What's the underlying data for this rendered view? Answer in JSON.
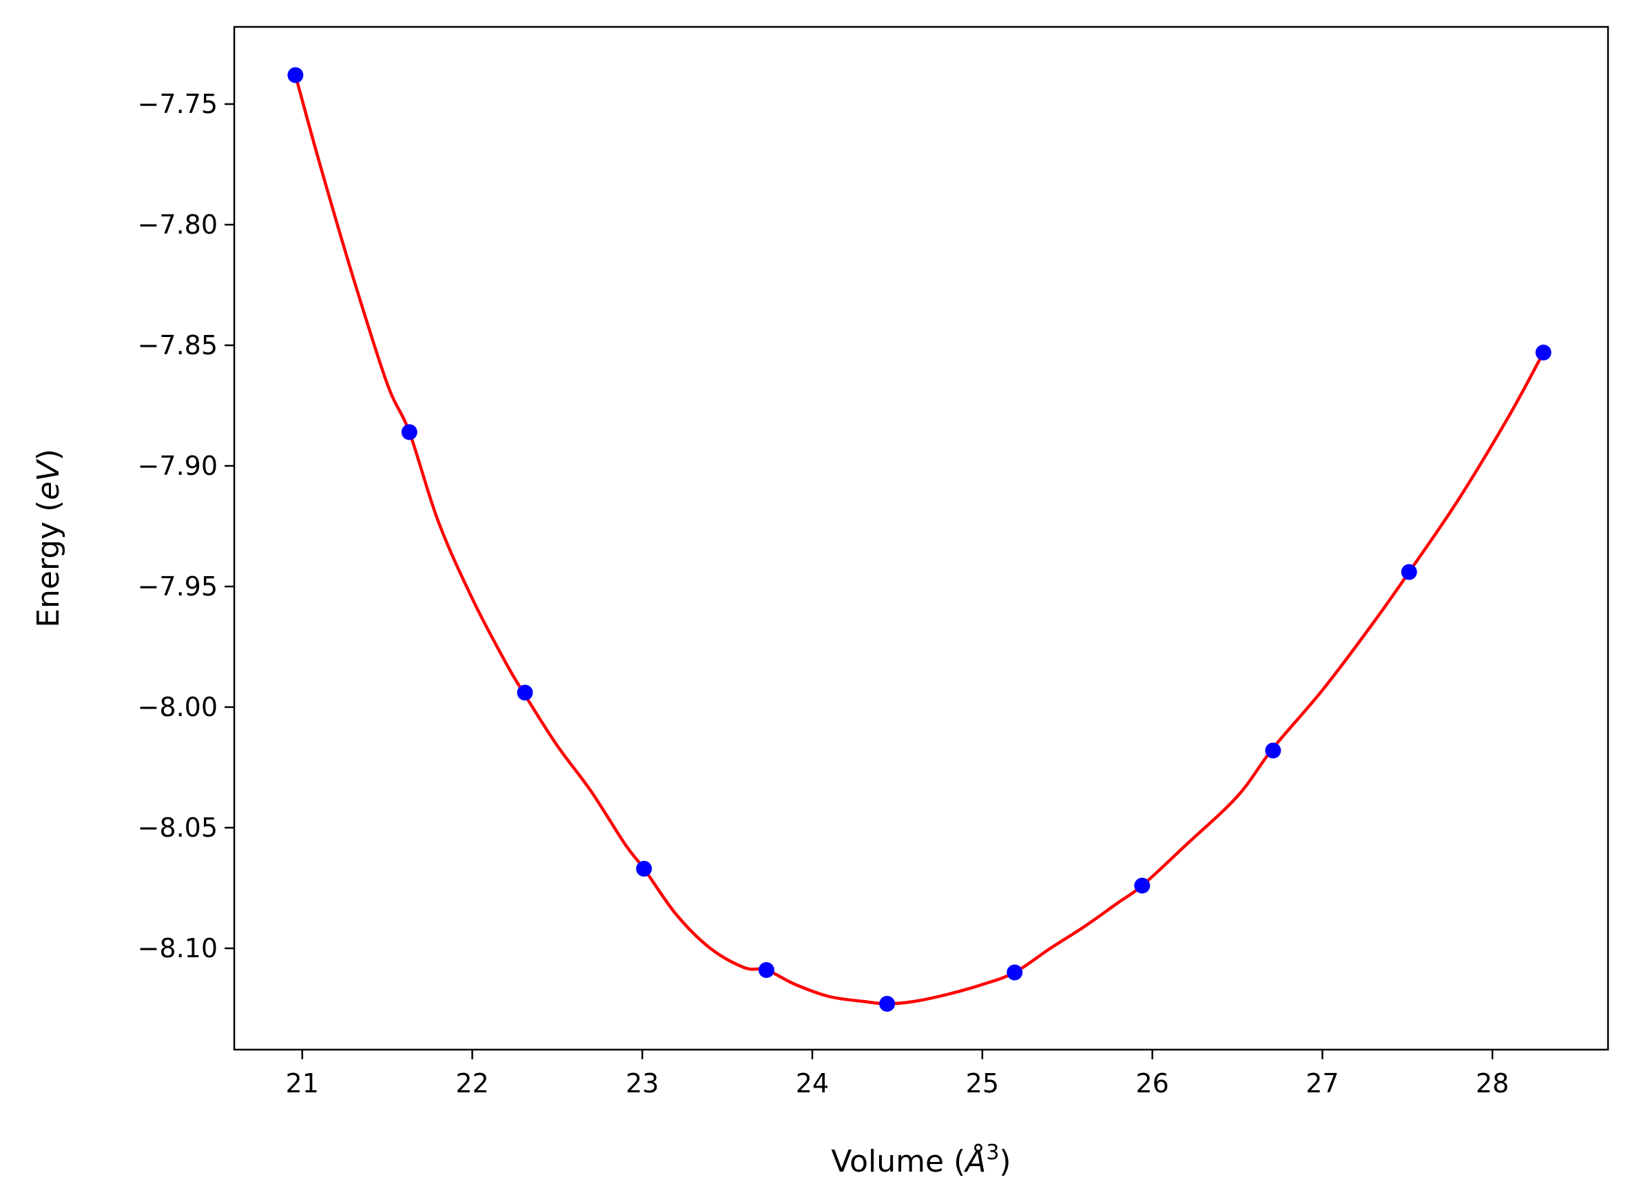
{
  "chart_data": {
    "type": "line",
    "title": "",
    "xlabel": "Volume (Å³)",
    "xlabel_parts": {
      "before": "Volume (",
      "symbol": "Å",
      "superscript": "3",
      "after": ")"
    },
    "ylabel": "Energy (eV)",
    "ylabel_parts": {
      "before": "Energy (",
      "italic": "eV",
      "after": ")"
    },
    "xlim": [
      20.6,
      28.68
    ],
    "ylim": [
      -8.142,
      -7.718
    ],
    "xticks": [
      21,
      22,
      23,
      24,
      25,
      26,
      27,
      28
    ],
    "yticks": [
      -7.75,
      -7.8,
      -7.85,
      -7.9,
      -7.95,
      -8.0,
      -8.05,
      -8.1
    ],
    "ytick_labels": [
      "−7.75",
      "−7.80",
      "−7.85",
      "−7.90",
      "−7.95",
      "−8.00",
      "−8.05",
      "−8.10"
    ],
    "grid": false,
    "series": [
      {
        "kind": "fit-curve",
        "color": "#ff0000",
        "x": [
          20.96,
          21.1,
          21.3,
          21.5,
          21.63,
          21.8,
          22.0,
          22.2,
          22.31,
          22.5,
          22.7,
          22.9,
          23.01,
          23.2,
          23.4,
          23.6,
          23.73,
          23.9,
          24.1,
          24.3,
          24.44,
          24.6,
          24.8,
          25.0,
          25.19,
          25.4,
          25.6,
          25.8,
          25.94,
          26.2,
          26.5,
          26.71,
          27.0,
          27.3,
          27.51,
          27.8,
          28.1,
          28.3
        ],
        "y": [
          -7.738,
          -7.774,
          -7.822,
          -7.866,
          -7.886,
          -7.923,
          -7.955,
          -7.982,
          -7.995,
          -8.016,
          -8.035,
          -8.057,
          -8.067,
          -8.086,
          -8.1,
          -8.108,
          -8.109,
          -8.115,
          -8.12,
          -8.122,
          -8.123,
          -8.122,
          -8.119,
          -8.115,
          -8.11,
          -8.1,
          -8.091,
          -8.081,
          -8.074,
          -8.057,
          -8.037,
          -8.017,
          -7.993,
          -7.965,
          -7.944,
          -7.914,
          -7.879,
          -7.853
        ]
      },
      {
        "kind": "data-points",
        "color": "#0000ff",
        "x": [
          20.96,
          21.63,
          22.31,
          23.01,
          23.73,
          24.44,
          25.19,
          25.94,
          26.71,
          27.51,
          28.3
        ],
        "y": [
          -7.738,
          -7.886,
          -7.994,
          -8.067,
          -8.109,
          -8.123,
          -8.11,
          -8.074,
          -8.018,
          -7.944,
          -7.853
        ]
      }
    ]
  }
}
